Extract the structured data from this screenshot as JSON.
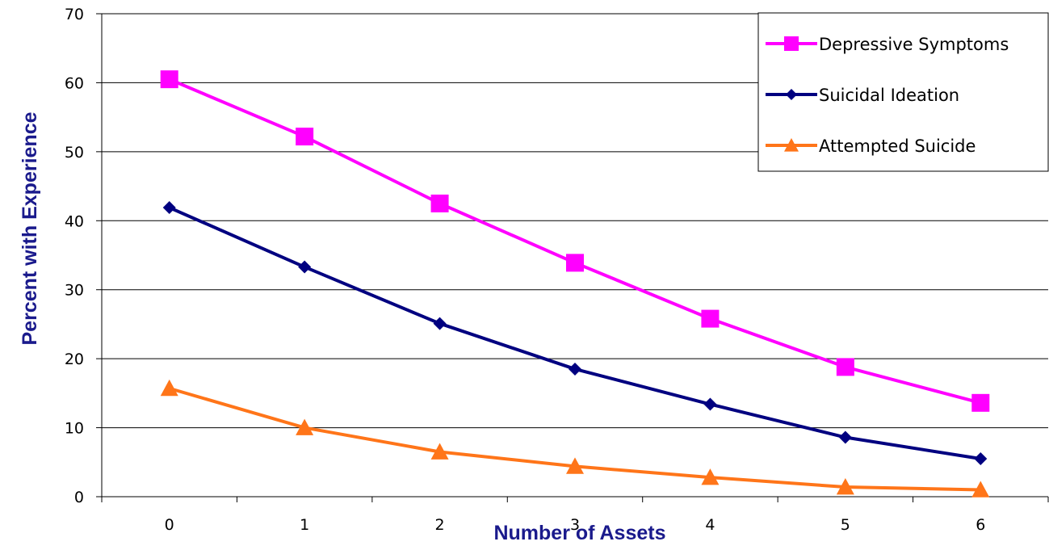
{
  "chart_data": {
    "type": "line",
    "xlabel": "Number of Assets",
    "ylabel": "Percent  with Experience",
    "x": [
      0,
      1,
      2,
      3,
      4,
      5,
      6
    ],
    "ylim": [
      0,
      70
    ],
    "yticks": [
      0,
      10,
      20,
      30,
      40,
      50,
      60,
      70
    ],
    "grid": "horizontal",
    "legend_position": "top-right",
    "series": [
      {
        "name": "Depressive Symptoms",
        "marker": "square",
        "color": "#ff00ff",
        "values": [
          60.5,
          52.2,
          42.5,
          33.9,
          25.8,
          18.8,
          13.6
        ]
      },
      {
        "name": "Suicidal Ideation",
        "marker": "diamond",
        "color": "#000080",
        "values": [
          41.9,
          33.3,
          25.1,
          18.5,
          13.4,
          8.6,
          5.5
        ]
      },
      {
        "name": "Attempted Suicide",
        "marker": "triangle",
        "color": "#ff7519",
        "values": [
          15.7,
          10.0,
          6.5,
          4.4,
          2.8,
          1.4,
          1.0
        ]
      }
    ]
  }
}
